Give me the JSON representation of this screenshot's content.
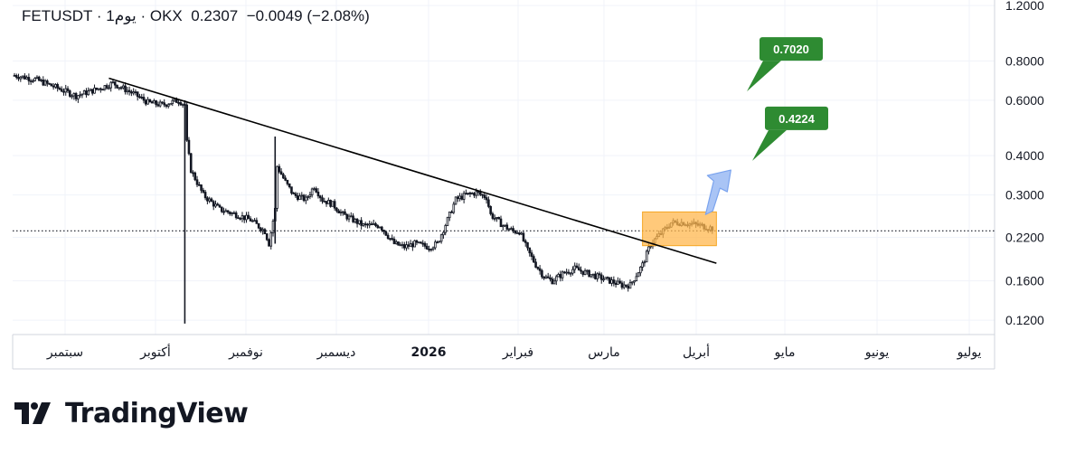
{
  "header": {
    "symbol": "FETUSDT",
    "separator": "·",
    "interval": "1يوم",
    "exchange": "OKX",
    "last_price": "0.2307",
    "change": "−0.0049",
    "change_pct": "(−2.08%)"
  },
  "brand": {
    "name": "TradingView"
  },
  "colors": {
    "candle": "#131722",
    "trendline": "#000000",
    "box_fill": "#ffb74d",
    "box_stroke": "#f5a623",
    "arrow_fill": "#a9c4f5",
    "arrow_stroke": "#7aa3ee",
    "callout": "#2e8b32"
  },
  "chart_data": {
    "type": "candlestick",
    "symbol": "FETUSDT",
    "interval": "1D",
    "yscale": "log",
    "ylim": [
      0.108,
      1.25
    ],
    "y_ticks": [
      "0.1200",
      "0.1600",
      "0.2200",
      "0.3000",
      "0.4000",
      "0.6000",
      "0.8000",
      "1.2000"
    ],
    "y_tick_values": [
      0.12,
      0.16,
      0.22,
      0.3,
      0.4,
      0.6,
      0.8,
      1.2
    ],
    "x_ticks": [
      "سبتمبر",
      "أكتوبر",
      "نوفمبر",
      "ديسمبر",
      "2026",
      "فبراير",
      "مارس",
      "أبريل",
      "مايو",
      "يونيو",
      "يوليو"
    ],
    "x_tick_bold": [
      false,
      false,
      false,
      false,
      true,
      false,
      false,
      false,
      false,
      false,
      false
    ],
    "grid": true,
    "last_price_line": 0.2307,
    "price_anchors": [
      [
        0,
        0.72
      ],
      [
        10,
        0.7
      ],
      [
        20,
        0.66
      ],
      [
        30,
        0.62
      ],
      [
        40,
        0.65
      ],
      [
        48,
        0.68
      ],
      [
        58,
        0.63
      ],
      [
        65,
        0.59
      ],
      [
        72,
        0.58
      ],
      [
        80,
        0.6
      ],
      [
        83,
        0.58
      ],
      [
        84,
        0.44
      ],
      [
        86,
        0.36
      ],
      [
        92,
        0.3
      ],
      [
        100,
        0.27
      ],
      [
        108,
        0.26
      ],
      [
        115,
        0.25
      ],
      [
        122,
        0.23
      ],
      [
        124,
        0.21
      ],
      [
        127,
        0.27
      ],
      [
        128,
        0.37
      ],
      [
        132,
        0.33
      ],
      [
        136,
        0.3
      ],
      [
        142,
        0.29
      ],
      [
        146,
        0.32
      ],
      [
        150,
        0.29
      ],
      [
        155,
        0.28
      ],
      [
        160,
        0.26
      ],
      [
        165,
        0.25
      ],
      [
        170,
        0.24
      ],
      [
        178,
        0.24
      ],
      [
        185,
        0.21
      ],
      [
        190,
        0.205
      ],
      [
        195,
        0.21
      ],
      [
        202,
        0.205
      ],
      [
        206,
        0.21
      ],
      [
        211,
        0.25
      ],
      [
        215,
        0.29
      ],
      [
        220,
        0.3
      ],
      [
        225,
        0.305
      ],
      [
        230,
        0.295
      ],
      [
        232,
        0.26
      ],
      [
        238,
        0.24
      ],
      [
        243,
        0.23
      ],
      [
        246,
        0.23
      ],
      [
        250,
        0.2
      ],
      [
        254,
        0.18
      ],
      [
        258,
        0.165
      ],
      [
        262,
        0.16
      ],
      [
        268,
        0.17
      ],
      [
        273,
        0.175
      ],
      [
        278,
        0.17
      ],
      [
        284,
        0.165
      ],
      [
        290,
        0.16
      ],
      [
        296,
        0.155
      ],
      [
        300,
        0.155
      ],
      [
        306,
        0.18
      ],
      [
        310,
        0.21
      ],
      [
        316,
        0.23
      ],
      [
        320,
        0.245
      ],
      [
        326,
        0.245
      ],
      [
        334,
        0.24
      ],
      [
        340,
        0.235
      ]
    ],
    "candle_wicks": [
      {
        "day": 83,
        "high": 0.6,
        "low": 0.117
      },
      {
        "day": 127,
        "high": 0.46,
        "low": 0.21
      }
    ],
    "trendline": {
      "start": {
        "day": 46,
        "price": 0.705
      },
      "end": {
        "day": 342,
        "price": 0.182
      }
    },
    "consolidation_box": {
      "day_start": 306,
      "day_end": 342,
      "price_top": 0.265,
      "price_bottom": 0.207
    },
    "projection_arrow": {
      "day": 342,
      "price_from": 0.26,
      "price_to": 0.36
    },
    "targets": [
      {
        "label": "0.7020",
        "price": 0.702
      },
      {
        "label": "0.4224",
        "price": 0.4224
      }
    ]
  }
}
